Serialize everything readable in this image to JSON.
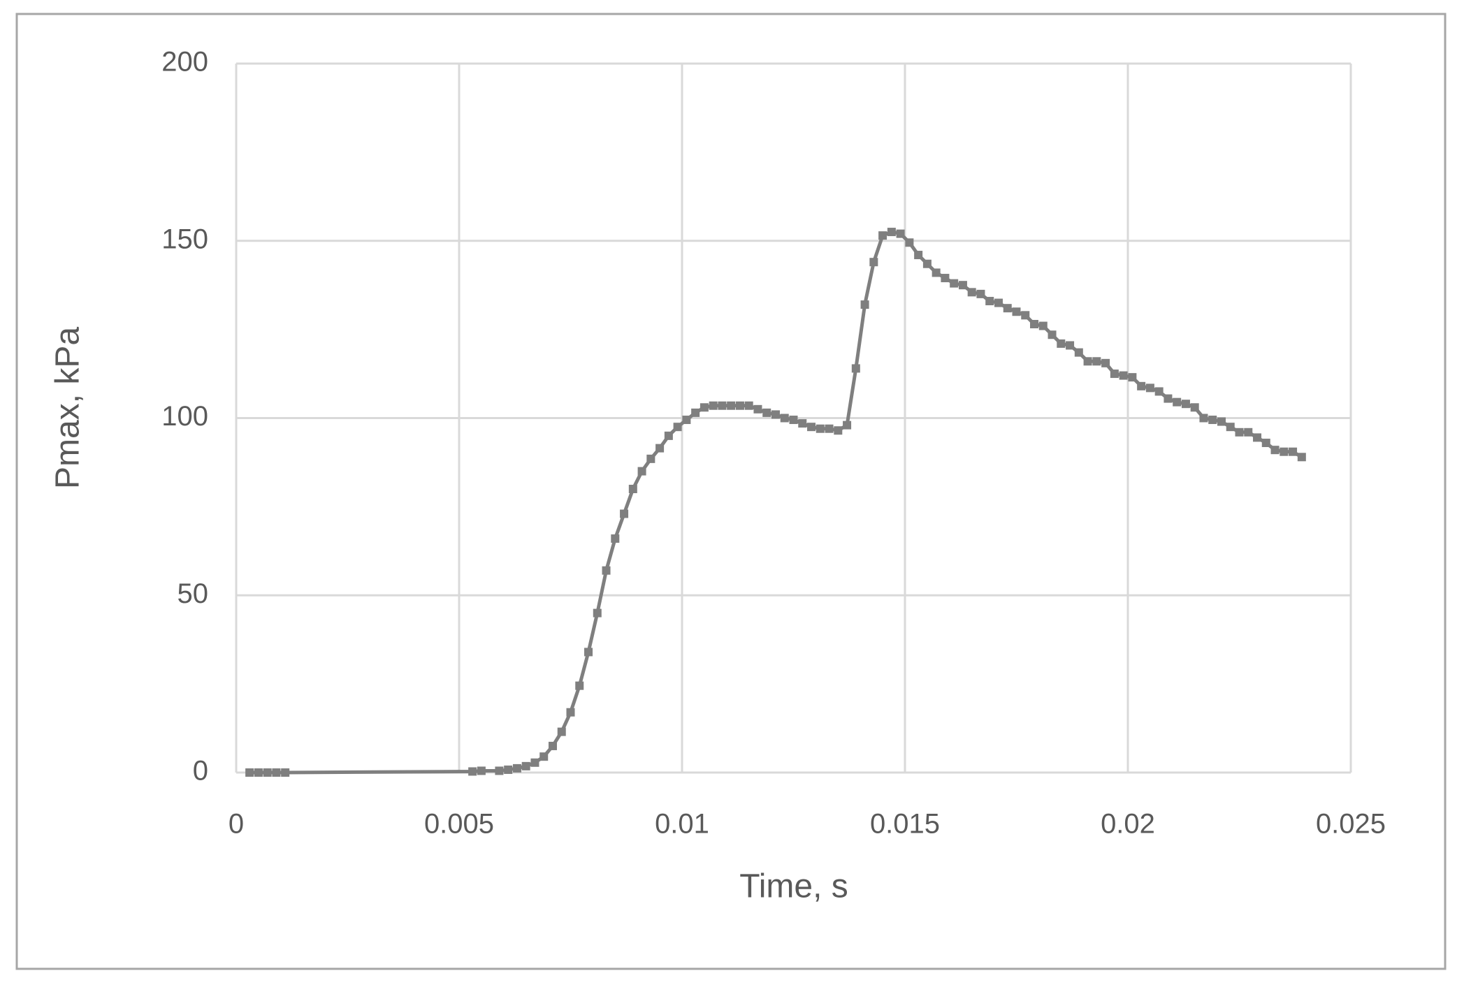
{
  "chart_data": {
    "type": "scatter-line",
    "x_label": "Time, s",
    "y_label": "Pmax, kPa",
    "xlim": [
      0,
      0.025
    ],
    "xticks": [
      0,
      0.005,
      0.01,
      0.015,
      0.02,
      0.025
    ],
    "ylim": [
      0,
      200
    ],
    "yticks": [
      0,
      50,
      100,
      150,
      200
    ],
    "grid": true,
    "series": [
      {
        "color": "#7f7f7f",
        "x": [
          0.0003,
          0.0005,
          0.0007,
          0.0009,
          0.0011,
          0.0053,
          0.0055,
          0.0059,
          0.0061,
          0.0063,
          0.0065,
          0.0067,
          0.0069,
          0.0071,
          0.0073,
          0.0075,
          0.0077,
          0.0079,
          0.0081,
          0.0083,
          0.0085,
          0.0087,
          0.0089,
          0.0091,
          0.0093,
          0.0095,
          0.0097,
          0.0099,
          0.0101,
          0.0103,
          0.0105,
          0.0107,
          0.0109,
          0.0111,
          0.0113,
          0.0115,
          0.0117,
          0.0119,
          0.0121,
          0.0123,
          0.0125,
          0.0127,
          0.0129,
          0.0131,
          0.0133,
          0.0135,
          0.0137,
          0.0139,
          0.0141,
          0.0143,
          0.0145,
          0.0147,
          0.0149,
          0.0151,
          0.0153,
          0.0155,
          0.0157,
          0.0159,
          0.0161,
          0.0163,
          0.0165,
          0.0167,
          0.0169,
          0.0171,
          0.0173,
          0.0175,
          0.0177,
          0.0179,
          0.0181,
          0.0183,
          0.0185,
          0.0187,
          0.0189,
          0.0191,
          0.0193,
          0.0195,
          0.0197,
          0.0199,
          0.0201,
          0.0203,
          0.0205,
          0.0207,
          0.0209,
          0.0211,
          0.0213,
          0.0215,
          0.0217,
          0.0219,
          0.0221,
          0.0223,
          0.0225,
          0.0227,
          0.0229,
          0.0231,
          0.0233,
          0.0235,
          0.0237,
          0.0239
        ],
        "values": [
          0,
          0,
          0,
          0,
          0,
          0.3,
          0.5,
          0.5,
          0.8,
          1.2,
          1.8,
          2.8,
          4.5,
          7.5,
          11.5,
          17,
          24.5,
          34,
          45,
          57,
          66,
          73,
          80,
          85,
          88.5,
          91.5,
          95,
          97.5,
          99.5,
          101.5,
          103,
          103.5,
          103.5,
          103.5,
          103.5,
          103.5,
          102.5,
          101.5,
          101,
          100,
          99.5,
          98.5,
          97.5,
          97,
          97,
          96.5,
          98,
          114,
          132,
          144,
          151.5,
          152.5,
          152,
          149.5,
          146,
          143.5,
          141,
          139.5,
          138,
          137.5,
          135.5,
          135,
          133,
          132.5,
          131,
          130,
          129,
          126.5,
          126,
          123.5,
          121,
          120.5,
          118.5,
          116,
          116,
          115.5,
          112.5,
          112,
          111.5,
          109,
          108.5,
          107.5,
          105.5,
          104.5,
          104,
          103,
          100,
          99.5,
          99,
          97.5,
          96,
          96,
          94.5,
          93,
          91,
          90.5,
          90.5,
          89
        ]
      }
    ]
  }
}
